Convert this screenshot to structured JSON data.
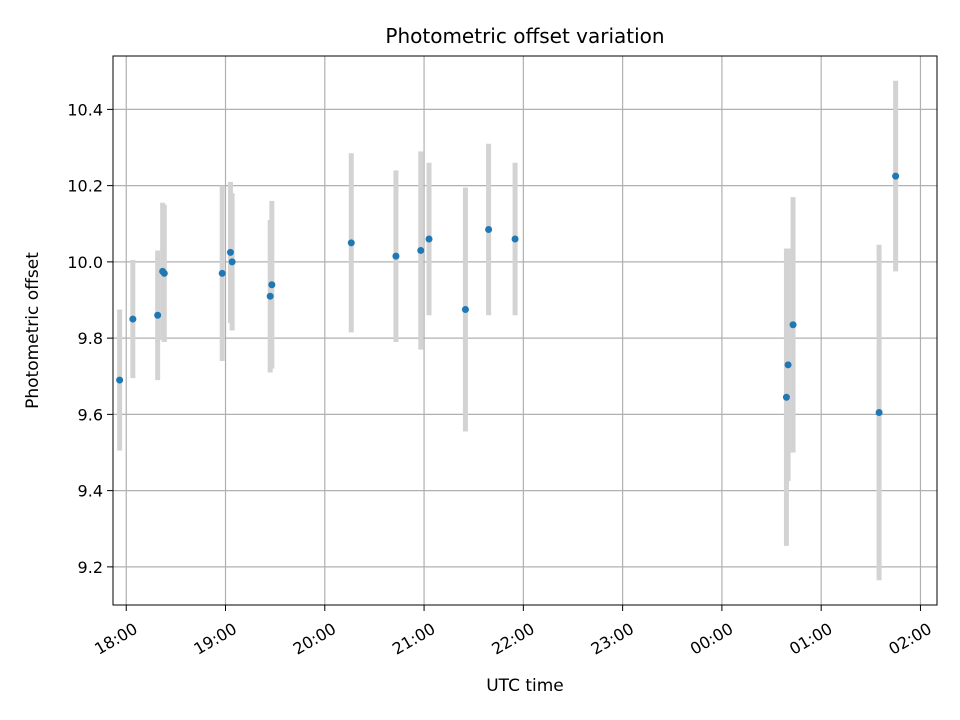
{
  "chart_data": {
    "type": "scatter",
    "title": "Photometric offset variation",
    "xlabel": "UTC time",
    "ylabel": "Photometric offset",
    "grid": true,
    "x_ticks": [
      "18:00",
      "19:00",
      "20:00",
      "21:00",
      "22:00",
      "23:00",
      "00:00",
      "01:00",
      "02:00"
    ],
    "y_ticks": [
      "9.2",
      "9.4",
      "9.6",
      "9.8",
      "10.0",
      "10.2",
      "10.4"
    ],
    "xlim": [
      "17:52",
      "02:10"
    ],
    "ylim": [
      9.1,
      10.54
    ],
    "colors": {
      "point": "#1f77b4",
      "errorbar": "#d3d3d3",
      "grid": "#b0b0b0"
    },
    "points": [
      {
        "x": "17:56",
        "y": 9.69,
        "err": 0.185
      },
      {
        "x": "18:04",
        "y": 9.85,
        "err": 0.155
      },
      {
        "x": "18:19",
        "y": 9.86,
        "err": 0.17
      },
      {
        "x": "18:22",
        "y": 9.975,
        "err": 0.18
      },
      {
        "x": "18:23",
        "y": 9.97,
        "err": 0.18
      },
      {
        "x": "18:58",
        "y": 9.97,
        "err": 0.23
      },
      {
        "x": "19:03",
        "y": 10.025,
        "err": 0.185
      },
      {
        "x": "19:04",
        "y": 10.0,
        "err": 0.18
      },
      {
        "x": "19:27",
        "y": 9.91,
        "err": 0.2
      },
      {
        "x": "19:28",
        "y": 9.94,
        "err": 0.22
      },
      {
        "x": "20:16",
        "y": 10.05,
        "err": 0.235
      },
      {
        "x": "20:43",
        "y": 10.015,
        "err": 0.225
      },
      {
        "x": "20:58",
        "y": 10.03,
        "err": 0.26
      },
      {
        "x": "21:03",
        "y": 10.06,
        "err": 0.2
      },
      {
        "x": "21:25",
        "y": 9.875,
        "err": 0.32
      },
      {
        "x": "21:39",
        "y": 10.085,
        "err": 0.225
      },
      {
        "x": "21:55",
        "y": 10.06,
        "err": 0.2
      },
      {
        "x": "00:39",
        "y": 9.645,
        "err": 0.39
      },
      {
        "x": "00:40",
        "y": 9.73,
        "err": 0.305
      },
      {
        "x": "00:43",
        "y": 9.835,
        "err": 0.335
      },
      {
        "x": "01:35",
        "y": 9.605,
        "err": 0.44
      },
      {
        "x": "01:45",
        "y": 10.225,
        "err": 0.25
      }
    ]
  }
}
